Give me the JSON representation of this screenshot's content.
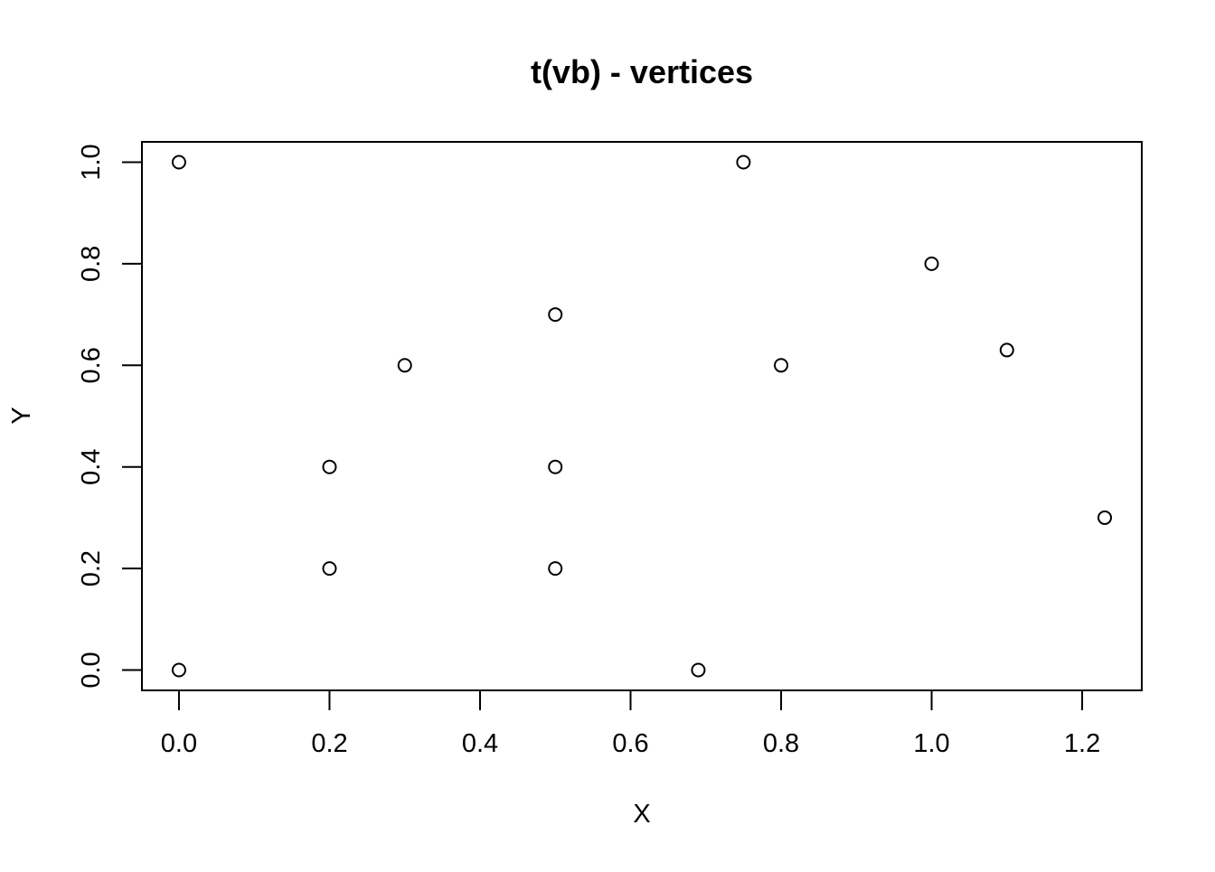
{
  "chart_data": {
    "type": "scatter",
    "title": "t(vb) - vertices",
    "xlabel": "X",
    "ylabel": "Y",
    "xlim": [
      -0.0492,
      1.2792
    ],
    "ylim": [
      -0.04,
      1.04
    ],
    "x_ticks": [
      0.0,
      0.2,
      0.4,
      0.6,
      0.8,
      1.0,
      1.2
    ],
    "x_tick_labels": [
      "0.0",
      "0.2",
      "0.4",
      "0.6",
      "0.8",
      "1.0",
      "1.2"
    ],
    "y_ticks": [
      0.0,
      0.2,
      0.4,
      0.6,
      0.8,
      1.0
    ],
    "y_tick_labels": [
      "0.0",
      "0.2",
      "0.4",
      "0.6",
      "0.8",
      "1.0"
    ],
    "grid": false,
    "marker": "open-circle",
    "colors": {
      "point": "#000000",
      "axis": "#000000",
      "background": "#ffffff"
    },
    "points": [
      {
        "x": 0.0,
        "y": 1.0
      },
      {
        "x": 0.0,
        "y": 0.0
      },
      {
        "x": 0.2,
        "y": 0.4
      },
      {
        "x": 0.2,
        "y": 0.2
      },
      {
        "x": 0.3,
        "y": 0.6
      },
      {
        "x": 0.5,
        "y": 0.7
      },
      {
        "x": 0.5,
        "y": 0.4
      },
      {
        "x": 0.5,
        "y": 0.2
      },
      {
        "x": 0.69,
        "y": 0.0
      },
      {
        "x": 0.75,
        "y": 1.0
      },
      {
        "x": 0.8,
        "y": 0.6
      },
      {
        "x": 1.0,
        "y": 0.8
      },
      {
        "x": 1.1,
        "y": 0.63
      },
      {
        "x": 1.23,
        "y": 0.3
      }
    ]
  }
}
